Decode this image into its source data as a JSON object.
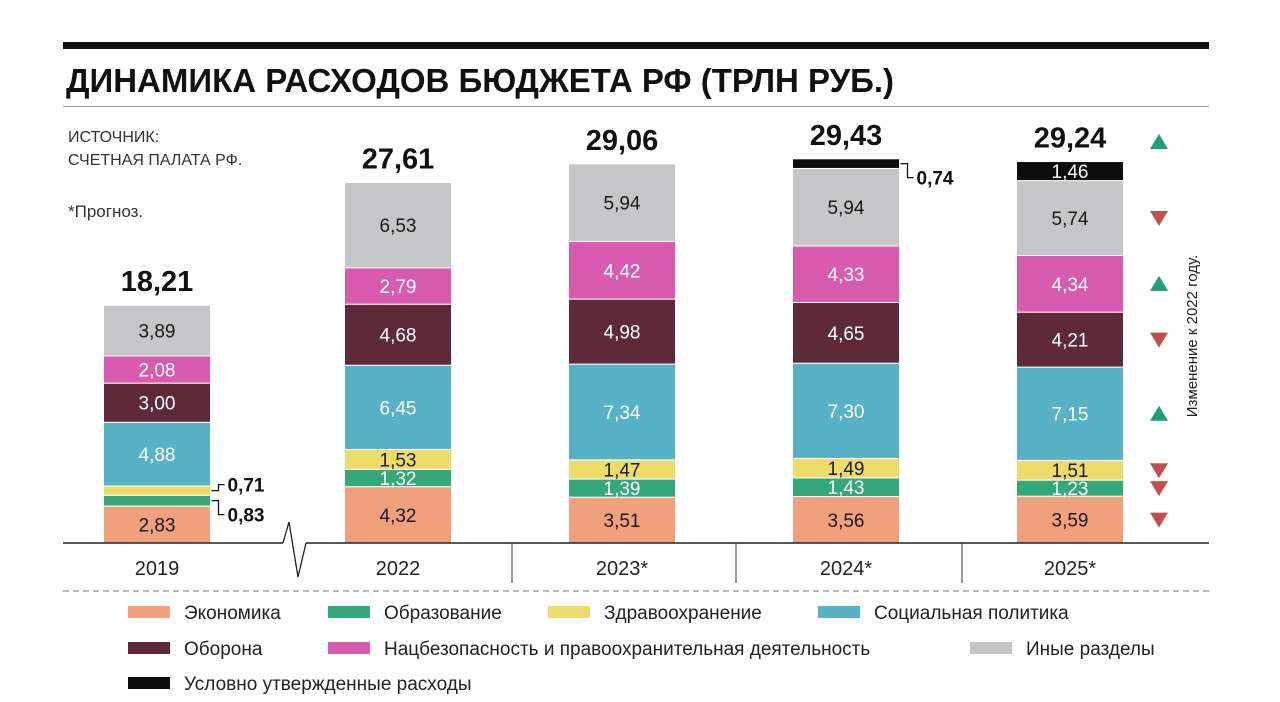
{
  "title": "ДИНАМИКА РАСХОДОВ БЮДЖЕТА РФ (ТРЛН РУБ.)",
  "source_line1": "ИСТОЧНИК:",
  "source_line2": "СЧЕТНАЯ ПАЛАТА РФ.",
  "footnote": "*Прогноз.",
  "change_label": "Изменение к 2022 году.",
  "chart_data": {
    "type": "bar",
    "stacked": true,
    "categories": [
      "2019",
      "2022",
      "2023*",
      "2024*",
      "2025*"
    ],
    "totals": [
      "18,21",
      "27,61",
      "29,06",
      "29,43",
      "29,24"
    ],
    "series": [
      {
        "name": "Экономика",
        "color": "#F0A07C",
        "text_color": "#1a1a1a",
        "values": [
          2.83,
          4.32,
          3.51,
          3.56,
          3.59
        ],
        "labels": [
          "2,83",
          "4,32",
          "3,51",
          "3,56",
          "3,59"
        ]
      },
      {
        "name": "Образование",
        "color": "#35A87A",
        "text_color": "#ffffff",
        "values": [
          0.83,
          1.32,
          1.39,
          1.43,
          1.23
        ],
        "labels": [
          "0,83",
          "1,32",
          "1,39",
          "1,43",
          "1,23"
        ]
      },
      {
        "name": "Здравоохранение",
        "color": "#EEDC6A",
        "text_color": "#1a1a1a",
        "values": [
          0.71,
          1.53,
          1.47,
          1.49,
          1.51
        ],
        "labels": [
          "0,71",
          "1,53",
          "1,47",
          "1,49",
          "1,51"
        ]
      },
      {
        "name": "Социальная политика",
        "color": "#56B2C4",
        "text_color": "#ffffff",
        "values": [
          4.88,
          6.45,
          7.34,
          7.3,
          7.15
        ],
        "labels": [
          "4,88",
          "6,45",
          "7,34",
          "7,30",
          "7,15"
        ]
      },
      {
        "name": "Оборона",
        "color": "#5E2A3A",
        "text_color": "#ffffff",
        "values": [
          3.0,
          4.68,
          4.98,
          4.65,
          4.21
        ],
        "labels": [
          "3,00",
          "4,68",
          "4,98",
          "4,65",
          "4,21"
        ]
      },
      {
        "name": "Нацбезопасность и правоохранительная деятельность",
        "color": "#D95BB0",
        "text_color": "#ffffff",
        "values": [
          2.08,
          2.79,
          4.42,
          4.33,
          4.34
        ],
        "labels": [
          "2,08",
          "2,79",
          "4,42",
          "4,33",
          "4,34"
        ]
      },
      {
        "name": "Иные разделы",
        "color": "#C6C5C7",
        "text_color": "#1a1a1a",
        "values": [
          3.89,
          6.53,
          5.94,
          5.94,
          5.74
        ],
        "labels": [
          "3,89",
          "6,53",
          "5,94",
          "5,94",
          "5,74"
        ]
      },
      {
        "name": "Условно утвержденные расходы",
        "color": "#0d0d0d",
        "text_color": "#ffffff",
        "values": [
          0,
          0,
          0,
          0.74,
          1.46
        ],
        "labels": [
          "",
          "",
          "",
          "0,74",
          "1,46"
        ]
      }
    ],
    "external_labels": [
      {
        "category": "2019",
        "series": "Здравоохранение",
        "label": "0,71"
      },
      {
        "category": "2019",
        "series": "Образование",
        "label": "0,83"
      },
      {
        "category": "2024*",
        "series": "Условно утвержденные расходы",
        "label": "0,74"
      }
    ],
    "change_indicators": [
      {
        "series": "Экономика",
        "direction": "down",
        "color": "#C0504D"
      },
      {
        "series": "Образование",
        "direction": "down",
        "color": "#C0504D"
      },
      {
        "series": "Здравоохранение",
        "direction": "down",
        "color": "#C0504D"
      },
      {
        "series": "Социальная политика",
        "direction": "up",
        "color": "#1F9E7A"
      },
      {
        "series": "Оборона",
        "direction": "down",
        "color": "#C0504D"
      },
      {
        "series": "Нацбезопасность и правоохранительная деятельность",
        "direction": "up",
        "color": "#1F9E7A"
      },
      {
        "series": "Иные разделы",
        "direction": "down",
        "color": "#C0504D"
      },
      {
        "series": "Всего",
        "direction": "up",
        "color": "#1F9E7A"
      }
    ],
    "axis_break_between": [
      "2019",
      "2022"
    ],
    "legend_position": "bottom"
  }
}
